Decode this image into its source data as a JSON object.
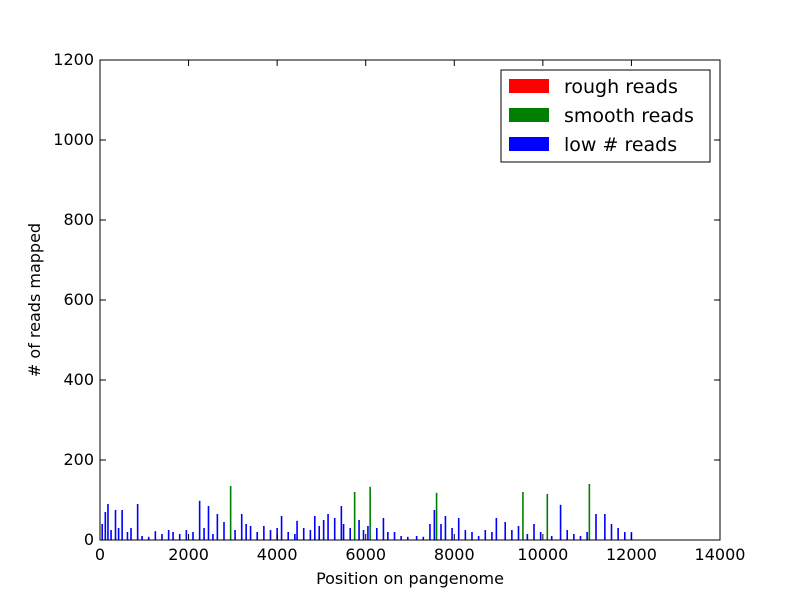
{
  "chart_data": {
    "type": "bar",
    "title": "",
    "xlabel": "Position on pangenome",
    "ylabel": "# of reads mapped",
    "xlim": [
      0,
      14000
    ],
    "ylim": [
      0,
      1200
    ],
    "xticks": [
      0,
      2000,
      4000,
      6000,
      8000,
      10000,
      12000,
      14000
    ],
    "yticks": [
      0,
      200,
      400,
      600,
      800,
      1000,
      1200
    ],
    "grid": false,
    "legend": {
      "placement": "top-right",
      "entries": [
        {
          "name": "rough reads",
          "color": "#ff0000"
        },
        {
          "name": "smooth reads",
          "color": "#008000"
        },
        {
          "name": "low # reads",
          "color": "#0000ff"
        }
      ]
    },
    "series": [
      {
        "name": "rough reads",
        "color": "#ff0000",
        "x": [],
        "values": []
      },
      {
        "name": "smooth reads",
        "color": "#008000",
        "x": [
          2950,
          5750,
          6100,
          7600,
          9550,
          10100,
          11050
        ],
        "values": [
          135,
          120,
          133,
          118,
          120,
          115,
          140
        ]
      },
      {
        "name": "low # reads",
        "color": "#0000ff",
        "x": [
          50,
          120,
          180,
          250,
          350,
          420,
          500,
          620,
          700,
          850,
          950,
          1100,
          1250,
          1400,
          1550,
          1650,
          1800,
          1950,
          2100,
          2250,
          2350,
          2450,
          2550,
          2650,
          2800,
          3050,
          3200,
          3300,
          3400,
          3550,
          3700,
          3850,
          4000,
          4100,
          4250,
          4400,
          4450,
          4600,
          4750,
          4850,
          4950,
          5050,
          5150,
          5300,
          5450,
          5500,
          5650,
          5850,
          5950,
          6050,
          6250,
          6400,
          6500,
          6650,
          6800,
          6950,
          7150,
          7300,
          7450,
          7550,
          7700,
          7800,
          7950,
          8100,
          8250,
          8400,
          8550,
          8700,
          8850,
          8950,
          9150,
          9300,
          9450,
          9650,
          9800,
          9950,
          10200,
          10400,
          10550,
          10700,
          10850,
          11000,
          11200,
          11400,
          11550,
          11700,
          11850,
          12000
        ],
        "values": [
          40,
          70,
          90,
          25,
          75,
          30,
          75,
          20,
          30,
          90,
          10,
          8,
          22,
          15,
          25,
          20,
          15,
          25,
          20,
          98,
          30,
          85,
          15,
          65,
          45,
          25,
          65,
          40,
          35,
          20,
          35,
          25,
          30,
          60,
          20,
          15,
          48,
          30,
          25,
          60,
          35,
          50,
          65,
          55,
          85,
          40,
          30,
          50,
          25,
          35,
          30,
          55,
          20,
          20,
          10,
          8,
          10,
          8,
          40,
          75,
          40,
          60,
          30,
          55,
          25,
          20,
          10,
          25,
          20,
          55,
          45,
          25,
          35,
          15,
          40,
          20,
          10,
          88,
          25,
          15,
          10,
          20,
          65,
          65,
          40,
          30,
          20,
          20
        ]
      }
    ]
  }
}
